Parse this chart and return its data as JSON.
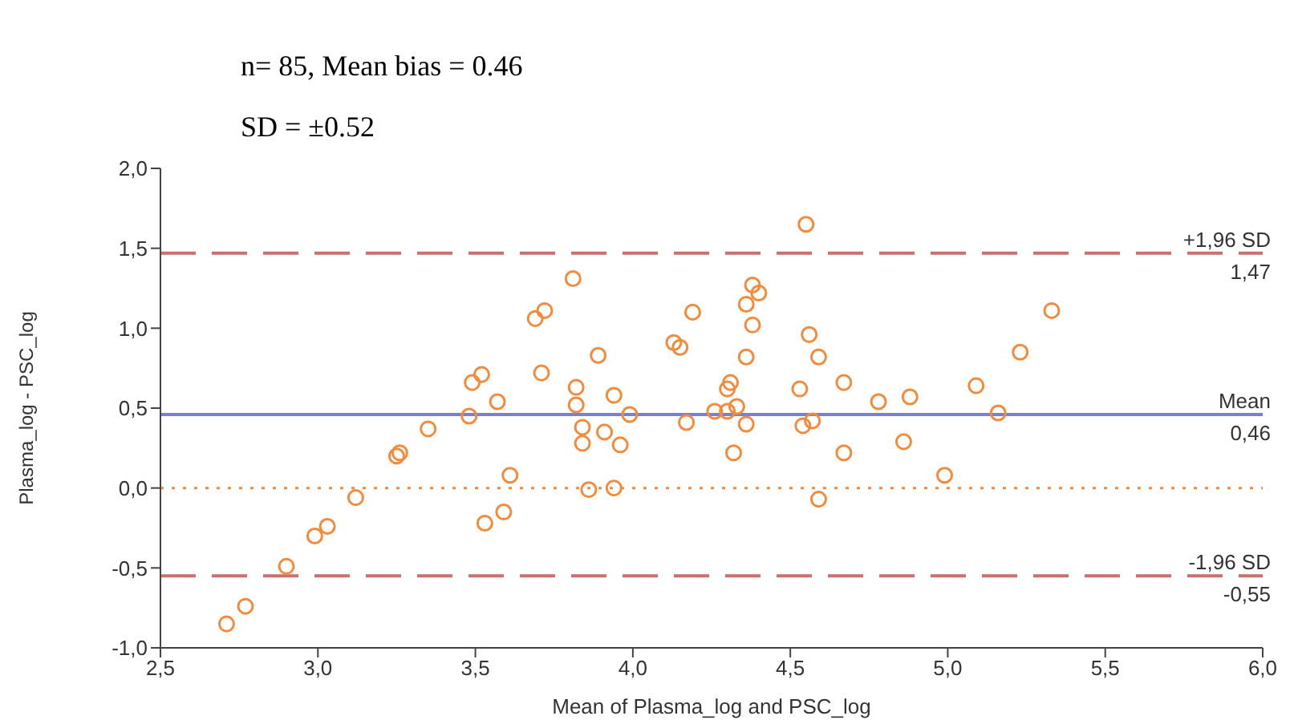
{
  "chart_data": {
    "type": "scatter",
    "title": "n= 85, Mean bias = 0.46",
    "subtitle": "SD = ±0.52",
    "xlabel": "Mean of Plasma_log and PSC_log",
    "ylabel": "Plasma_log - PSC_log",
    "series": [
      {
        "color": "#f28c3c",
        "x": [
          2.71,
          2.77,
          2.9,
          2.99,
          3.03,
          3.12,
          3.25,
          3.26,
          3.35,
          3.48,
          3.49,
          3.52,
          3.57,
          3.61,
          3.53,
          3.59,
          3.69,
          3.72,
          3.71,
          3.81,
          3.82,
          3.82,
          3.89,
          3.94,
          3.99,
          3.84,
          3.91,
          3.84,
          3.96,
          3.86,
          3.94,
          4.13,
          4.15,
          4.19,
          4.17,
          4.26,
          4.31,
          4.3,
          4.33,
          4.3,
          4.36,
          4.32,
          4.36,
          4.38,
          4.4,
          4.38,
          4.36,
          4.55,
          4.56,
          4.59,
          4.53,
          4.54,
          4.57,
          4.59,
          4.67,
          4.67,
          4.78,
          4.88,
          4.86,
          4.99,
          5.09,
          5.16,
          5.23,
          5.33
        ],
        "values": [
          -0.85,
          -0.74,
          -0.49,
          -0.3,
          -0.24,
          -0.06,
          0.2,
          0.22,
          0.37,
          0.45,
          0.66,
          0.71,
          0.54,
          0.08,
          -0.22,
          -0.15,
          1.06,
          1.11,
          0.72,
          1.31,
          0.63,
          0.52,
          0.83,
          0.58,
          0.46,
          0.38,
          0.35,
          0.28,
          0.27,
          -0.01,
          0.0,
          0.91,
          0.88,
          1.1,
          0.41,
          0.48,
          0.66,
          0.62,
          0.51,
          0.48,
          0.4,
          0.22,
          1.15,
          1.27,
          1.22,
          1.02,
          0.82,
          1.65,
          0.96,
          0.82,
          0.62,
          0.39,
          0.42,
          -0.07,
          0.66,
          0.22,
          0.54,
          0.57,
          0.29,
          0.08,
          0.64,
          0.47,
          0.85,
          1.11
        ]
      }
    ],
    "marker": "circle",
    "xlim": [
      2.5,
      6.0
    ],
    "xticks": [
      {
        "value": 2.5,
        "label": "2,5"
      },
      {
        "value": 3.0,
        "label": "3,0"
      },
      {
        "value": 3.5,
        "label": "3,5"
      },
      {
        "value": 4.0,
        "label": "4,0"
      },
      {
        "value": 4.5,
        "label": "4,5"
      },
      {
        "value": 5.0,
        "label": "5,0"
      },
      {
        "value": 5.5,
        "label": "5,5"
      },
      {
        "value": 6.0,
        "label": "6,0"
      }
    ],
    "ylim": [
      -1.0,
      2.0
    ],
    "yticks": [
      {
        "value": -1.0,
        "label": "-1,0"
      },
      {
        "value": -0.5,
        "label": "-0,5"
      },
      {
        "value": 0.0,
        "label": "0,0"
      },
      {
        "value": 0.5,
        "label": "0,5"
      },
      {
        "value": 1.0,
        "label": "1,0"
      },
      {
        "value": 1.5,
        "label": "1,5"
      },
      {
        "value": 2.0,
        "label": "2,0"
      }
    ],
    "ref_lines": [
      {
        "axis": "y",
        "value": 1.47,
        "label": "+1,96 SD\n1,47",
        "color": "#c97070",
        "line_style": "dashed"
      },
      {
        "axis": "y",
        "value": 0.46,
        "label": "Mean\n0,46",
        "color": "#7b7fd0",
        "line_style": "solid"
      },
      {
        "axis": "y",
        "value": -0.55,
        "label": "-1,96 SD\n-0,55",
        "color": "#c97070",
        "line_style": "dashed"
      },
      {
        "axis": "y",
        "value": 0,
        "color": "#f28c3c",
        "line_style": "dotted"
      }
    ]
  }
}
